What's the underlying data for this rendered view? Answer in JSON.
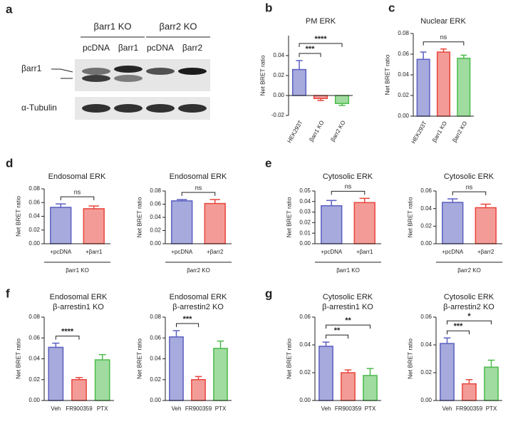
{
  "blot": {
    "panel": "a",
    "groups": [
      "βarr1 KO",
      "βarr2 KO"
    ],
    "lanes": [
      "pcDNA",
      "βarr1",
      "pcDNA",
      "βarr2"
    ],
    "rows": [
      "βarr1",
      "α-Tubulin"
    ]
  },
  "chart_data": [
    {
      "panel": "b",
      "type": "bar",
      "title": "PM ERK",
      "y_label": "Net BRET ratio",
      "categories": [
        "HEK293T",
        "βarr1 KO",
        "βarr2 KO"
      ],
      "values": [
        0.026,
        -0.003,
        -0.008
      ],
      "errors": [
        0.009,
        0.002,
        0.002
      ],
      "colors": [
        "#5a5fc0",
        "#e8453c",
        "#4cbb4c"
      ],
      "ylim": [
        -0.02,
        0.06
      ],
      "yticks": [
        -0.02,
        {
          "value": 0,
          "label": "0.00"
        },
        0.02,
        0.04
      ],
      "rotate_labels": true,
      "annotations": [
        {
          "between": [
            0,
            1
          ],
          "label": "***"
        },
        {
          "between": [
            0,
            2
          ],
          "label": "****"
        }
      ]
    },
    {
      "panel": "c",
      "type": "bar",
      "title": "Nuclear ERK",
      "y_label": "Net BRET ratio",
      "categories": [
        "HEK293T",
        "βarr1 KO",
        "βarr2 KO"
      ],
      "values": [
        0.055,
        0.062,
        0.056
      ],
      "errors": [
        0.007,
        0.003,
        0.003
      ],
      "colors": [
        "#5a5fc0",
        "#e8453c",
        "#4cbb4c"
      ],
      "ylim": [
        0,
        0.08
      ],
      "yticks": [
        {
          "value": 0,
          "label": "0.00"
        },
        0.02,
        0.04,
        0.06,
        0.08
      ],
      "rotate_labels": true,
      "annotations": [
        {
          "between": [
            0,
            2
          ],
          "label": "ns"
        }
      ]
    },
    {
      "panel": "d",
      "type": "bar",
      "title": "Endosomal ERK",
      "y_label": "Net BRET ratio",
      "categories": [
        "+pcDNA",
        "+βarr1"
      ],
      "values": [
        0.053,
        0.051
      ],
      "errors": [
        0.005,
        0.004
      ],
      "colors": [
        "#5a5fc0",
        "#e8453c"
      ],
      "ylim": [
        0,
        0.08
      ],
      "yticks": [
        {
          "value": 0,
          "label": "0.00"
        },
        0.02,
        0.04,
        0.06,
        0.08
      ],
      "group_label": "βarr1 KO",
      "annotations": [
        {
          "between": [
            0,
            1
          ],
          "label": "ns"
        }
      ]
    },
    {
      "type": "bar",
      "title": "Endosomal ERK",
      "y_label": "Net BRET ratio",
      "categories": [
        "+pcDNA",
        "+βarr2"
      ],
      "values": [
        0.065,
        0.061
      ],
      "errors": [
        0.002,
        0.006
      ],
      "colors": [
        "#5a5fc0",
        "#e8453c"
      ],
      "ylim": [
        0,
        0.08
      ],
      "yticks": [
        {
          "value": 0,
          "label": "0.00"
        },
        0.02,
        0.04,
        0.06,
        0.08
      ],
      "group_label": "βarr2 KO",
      "annotations": [
        {
          "between": [
            0,
            1
          ],
          "label": "ns"
        }
      ]
    },
    {
      "panel": "e",
      "type": "bar",
      "title": "Cytosolic ERK",
      "y_label": "Net BRET ratio",
      "categories": [
        "+pcDNA",
        "+βarr1"
      ],
      "values": [
        0.036,
        0.039
      ],
      "errors": [
        0.005,
        0.004
      ],
      "colors": [
        "#5a5fc0",
        "#e8453c"
      ],
      "ylim": [
        0,
        0.05
      ],
      "yticks": [
        {
          "value": 0,
          "label": "0.00"
        },
        0.01,
        0.02,
        0.03,
        0.04,
        0.05
      ],
      "group_label": "βarr1 KO",
      "annotations": [
        {
          "between": [
            0,
            1
          ],
          "label": "ns"
        }
      ]
    },
    {
      "type": "bar",
      "title": "Cytosolic ERK",
      "y_label": "Net BRET ratio",
      "categories": [
        "+pcDNA",
        "+βarr2"
      ],
      "values": [
        0.047,
        0.041
      ],
      "errors": [
        0.004,
        0.004
      ],
      "colors": [
        "#5a5fc0",
        "#e8453c"
      ],
      "ylim": [
        0,
        0.06
      ],
      "yticks": [
        {
          "value": 0,
          "label": "0.00"
        },
        0.02,
        0.04,
        0.06
      ],
      "group_label": "βarr2 KO",
      "annotations": [
        {
          "between": [
            0,
            1
          ],
          "label": "ns"
        }
      ]
    },
    {
      "panel": "f",
      "type": "bar",
      "title": "Endosomal ERK",
      "subtitle": "β-arrestin1 KO",
      "y_label": "Net BRET ratio",
      "categories": [
        "Veh",
        "FR900359",
        "PTX"
      ],
      "values": [
        0.051,
        0.02,
        0.039
      ],
      "errors": [
        0.004,
        0.002,
        0.005
      ],
      "colors": [
        "#5a5fc0",
        "#e8453c",
        "#4cbb4c"
      ],
      "ylim": [
        0,
        0.08
      ],
      "yticks": [
        {
          "value": 0,
          "label": "0.00"
        },
        0.02,
        0.04,
        0.06,
        0.08
      ],
      "annotations": [
        {
          "between": [
            0,
            1
          ],
          "label": "****"
        }
      ]
    },
    {
      "type": "bar",
      "title": "Endosomal ERK",
      "subtitle": "β-arrestin2 KO",
      "y_label": "Net BRET ratio",
      "categories": [
        "Veh",
        "FR900359",
        "PTX"
      ],
      "values": [
        0.061,
        0.02,
        0.05
      ],
      "errors": [
        0.006,
        0.003,
        0.007
      ],
      "colors": [
        "#5a5fc0",
        "#e8453c",
        "#4cbb4c"
      ],
      "ylim": [
        0,
        0.08
      ],
      "yticks": [
        {
          "value": 0,
          "label": "0.00"
        },
        0.02,
        0.04,
        0.06,
        0.08
      ],
      "annotations": [
        {
          "between": [
            0,
            1
          ],
          "label": "***"
        }
      ]
    },
    {
      "panel": "g",
      "type": "bar",
      "title": "Cytosolic ERK",
      "subtitle": "β-arrestin1 KO",
      "y_label": "Net BRET ratio",
      "categories": [
        "Veh",
        "FR900359",
        "PTX"
      ],
      "values": [
        0.039,
        0.02,
        0.018
      ],
      "errors": [
        0.003,
        0.002,
        0.005
      ],
      "colors": [
        "#5a5fc0",
        "#e8453c",
        "#4cbb4c"
      ],
      "ylim": [
        0,
        0.06
      ],
      "yticks": [
        {
          "value": 0,
          "label": "0.00"
        },
        0.02,
        0.04,
        0.06
      ],
      "annotations": [
        {
          "between": [
            0,
            1
          ],
          "label": "**"
        },
        {
          "between": [
            0,
            2
          ],
          "label": "**"
        }
      ]
    },
    {
      "type": "bar",
      "title": "Cytosolic ERK",
      "subtitle": "β-arrestin2 KO",
      "y_label": "Net BRET ratio",
      "categories": [
        "Veh",
        "FR900359",
        "PTX"
      ],
      "values": [
        0.041,
        0.012,
        0.024
      ],
      "errors": [
        0.004,
        0.003,
        0.005
      ],
      "colors": [
        "#5a5fc0",
        "#e8453c",
        "#4cbb4c"
      ],
      "ylim": [
        0,
        0.06
      ],
      "yticks": [
        {
          "value": 0,
          "label": "0.00"
        },
        0.02,
        0.04,
        0.06
      ],
      "annotations": [
        {
          "between": [
            0,
            1
          ],
          "label": "***"
        },
        {
          "between": [
            0,
            2
          ],
          "label": "*"
        }
      ]
    }
  ]
}
